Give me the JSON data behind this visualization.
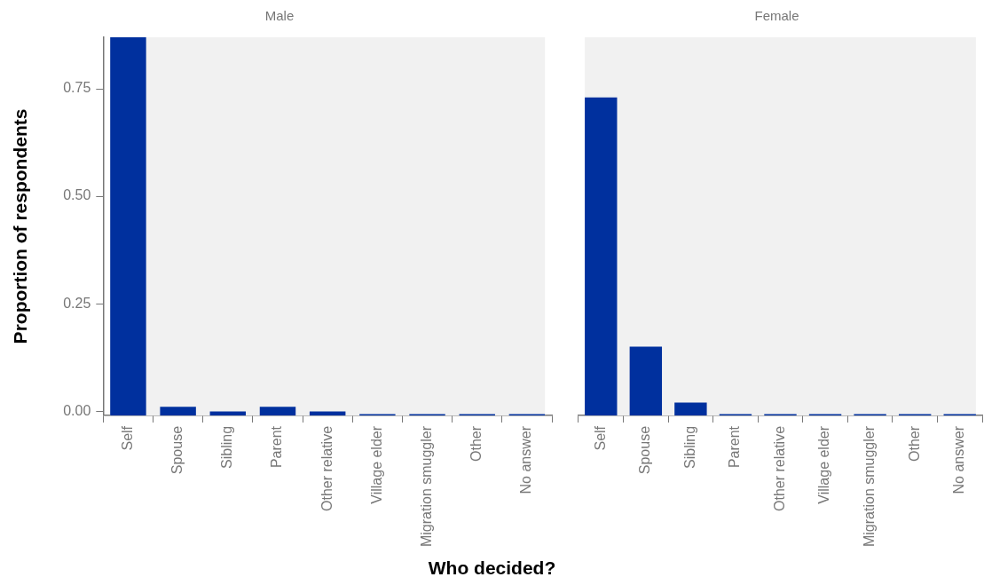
{
  "chart_data": [
    {
      "type": "bar",
      "title": "Male",
      "xlabel": "Who decided?",
      "ylabel": "Proportion of respondents",
      "categories": [
        "Self",
        "Spouse",
        "Sibling",
        "Parent",
        "Other relative",
        "Village elder",
        "Migration smuggler",
        "Other",
        "No answer"
      ],
      "values": [
        0.88,
        0.02,
        0.01,
        0.02,
        0.01,
        0.003,
        0.003,
        0.003,
        0.003
      ],
      "base": [
        -0.01,
        -0.01,
        -0.01,
        -0.01,
        -0.01,
        -0.01,
        -0.01,
        -0.01,
        -0.01
      ],
      "color": "#00309e",
      "ylim": [
        -0.01,
        0.87
      ],
      "yticks": [
        {
          "value": 0,
          "label": "0.00"
        },
        {
          "value": 0.25,
          "label": "0.25"
        },
        {
          "value": 0.5,
          "label": "0.50"
        },
        {
          "value": 0.75,
          "label": "0.75"
        }
      ],
      "grid": false
    },
    {
      "type": "bar",
      "title": "Female",
      "categories": [
        "Self",
        "Spouse",
        "Sibling",
        "Parent",
        "Other relative",
        "Village elder",
        "Migration smuggler",
        "Other",
        "No answer"
      ],
      "values": [
        0.74,
        0.16,
        0.03,
        0.003,
        0.003,
        0.003,
        0.003,
        0.003,
        0.003
      ],
      "base": [
        -0.01,
        -0.01,
        -0.01,
        -0.01,
        -0.01,
        -0.01,
        -0.01,
        -0.01,
        -0.01
      ],
      "color": "#00309e",
      "ylim": [
        -0.01,
        0.87
      ],
      "grid": false,
      "tick_labels": "x"
    }
  ]
}
